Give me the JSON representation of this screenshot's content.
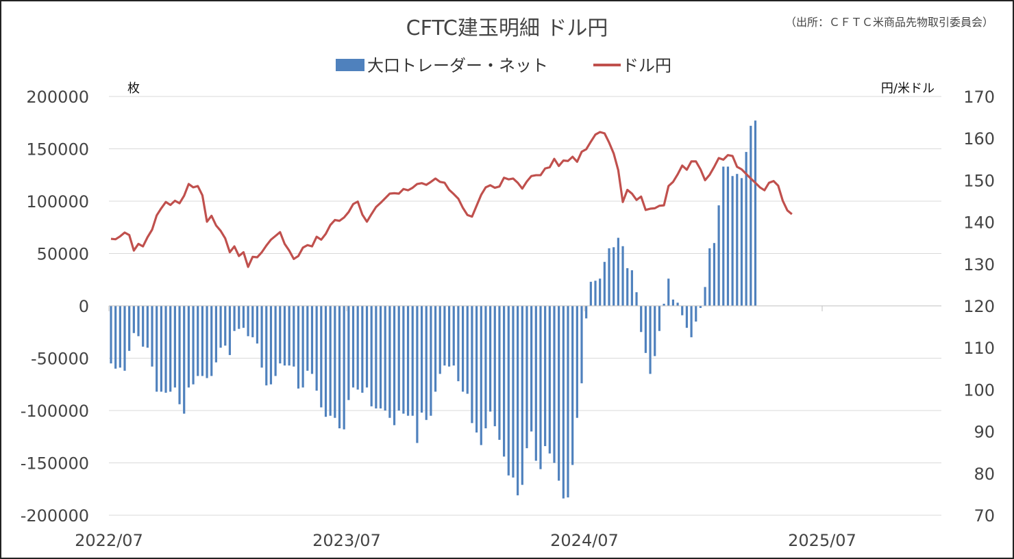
{
  "chart_data": {
    "type": "bar+line",
    "title": "CFTC建玉明細 ドル円",
    "source": "（出所：ＣＦＴＣ米商品先物取引委員会）",
    "left_axis_label": "枚",
    "right_axis_label": "円/米ドル",
    "legend": {
      "bar": "大口トレーダー・ネット",
      "line": "ドル円",
      "placement": "top-center"
    },
    "x_ticks": [
      "2022/07",
      "2023/07",
      "2024/07",
      "2025/07"
    ],
    "y_left": {
      "min": -200000,
      "max": 200000,
      "ticks": [
        "200000",
        "150000",
        "100000",
        "50000",
        "0",
        "-50000",
        "-100000",
        "-150000",
        "-200000"
      ]
    },
    "y_right": {
      "min": 70,
      "max": 170,
      "ticks": [
        "170",
        "160",
        "150",
        "140",
        "130",
        "120",
        "110",
        "100",
        "90",
        "80",
        "70"
      ]
    },
    "grid": "horizontal",
    "bar_color": "#4f81bd",
    "line_color": "#c0504d",
    "series": [
      {
        "name": "大口トレーダー・ネット",
        "axis": "left",
        "values": [
          -55000,
          -60000,
          -59000,
          -62000,
          -43000,
          -26000,
          -29000,
          -39000,
          -40000,
          -58000,
          -82000,
          -82000,
          -83000,
          -82000,
          -78000,
          -94000,
          -103000,
          -78000,
          -75000,
          -67000,
          -67000,
          -69000,
          -67000,
          -54000,
          -40000,
          -38000,
          -47000,
          -24000,
          -22000,
          -21000,
          -29000,
          -30000,
          -36000,
          -59000,
          -76000,
          -75000,
          -67000,
          -55000,
          -57000,
          -57000,
          -58000,
          -79000,
          -78000,
          -62000,
          -65000,
          -81000,
          -97000,
          -106000,
          -105000,
          -107000,
          -117000,
          -118000,
          -90000,
          -78000,
          -80000,
          -83000,
          -78000,
          -96000,
          -98000,
          -98000,
          -100000,
          -107000,
          -114000,
          -100000,
          -103000,
          -105000,
          -105000,
          -131000,
          -102000,
          -109000,
          -105000,
          -82000,
          -65000,
          -57000,
          -58000,
          -57000,
          -72000,
          -82000,
          -84000,
          -112000,
          -121000,
          -133000,
          -117000,
          -101000,
          -115000,
          -128000,
          -144000,
          -162000,
          -164000,
          -181000,
          -171000,
          -136000,
          -120000,
          -148000,
          -156000,
          -134000,
          -141000,
          -150000,
          -167000,
          -184000,
          -183000,
          -152000,
          -107000,
          -74000,
          -12000,
          23000,
          24000,
          26000,
          42000,
          55000,
          56000,
          65000,
          57000,
          36000,
          34000,
          13000,
          -25000,
          -45000,
          -65000,
          -48000,
          -24000,
          2000,
          26000,
          6000,
          3000,
          -9000,
          -21000,
          -30000,
          -15000,
          -2000,
          18000,
          55000,
          60000,
          96000,
          133000,
          133000,
          124000,
          126000,
          122000,
          147000,
          172000,
          177000
        ],
        "start": "2022/07"
      },
      {
        "name": "ドル円",
        "axis": "right",
        "values": [
          136,
          135.9,
          136.6,
          137.5,
          136.9,
          133.2,
          134.8,
          134.2,
          136.4,
          138.2,
          141.6,
          143.3,
          144.8,
          144.1,
          145.1,
          144.5,
          146.3,
          149.1,
          148.3,
          148.6,
          146.4,
          140.1,
          141.5,
          139.2,
          137.9,
          136.1,
          132.8,
          134.2,
          131.9,
          132.8,
          129.3,
          131.7,
          131.6,
          132.8,
          134.4,
          135.8,
          136.7,
          137.6,
          134.8,
          133.2,
          131.2,
          131.9,
          133.9,
          134.5,
          134.2,
          136.5,
          135.8,
          137.2,
          139.3,
          140.5,
          140.3,
          141.1,
          142.4,
          144.3,
          144.9,
          141.8,
          140.1,
          141.9,
          143.6,
          144.6,
          145.7,
          146.8,
          146.9,
          146.8,
          147.9,
          147.6,
          148.2,
          149.1,
          149.3,
          148.9,
          149.6,
          150.4,
          149.6,
          149.4,
          147.7,
          146.7,
          145.6,
          143.4,
          141.7,
          141.3,
          143.9,
          146.5,
          148.3,
          148.8,
          148.2,
          148.5,
          150.6,
          150.2,
          150.4,
          149.4,
          148,
          149.7,
          151,
          151.2,
          151.2,
          152.8,
          153.1,
          155.1,
          153.4,
          154.7,
          154.6,
          155.6,
          154.4,
          156.8,
          157.4,
          159.2,
          160.9,
          161.5,
          161.2,
          159,
          156.4,
          152.4,
          144.8,
          147.7,
          146.8,
          145.3,
          146.1,
          142.9,
          143.2,
          143.3,
          143.9,
          144,
          148.6,
          149.6,
          151.4,
          153.5,
          152.5,
          154.5,
          154.5,
          152.6,
          150,
          151.3,
          153.2,
          155.3,
          154.9,
          156,
          155.8,
          153.2,
          152.6,
          151.5,
          150.4,
          149.4,
          148.3,
          147.6,
          149.4,
          149.8,
          148.7,
          145.1,
          142.8,
          141.9
        ],
        "start": "2022/07"
      }
    ]
  }
}
